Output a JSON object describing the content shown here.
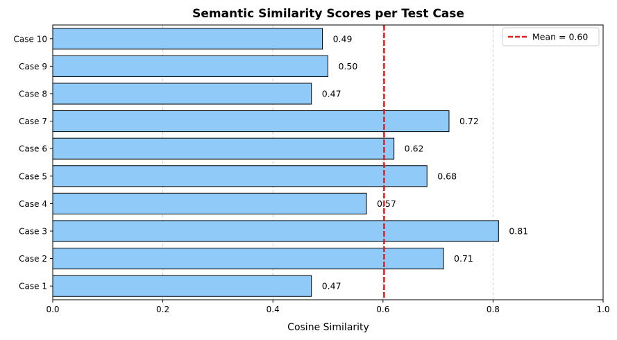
{
  "chart_data": {
    "type": "bar",
    "orientation": "horizontal",
    "title": "Semantic Similarity Scores per Test Case",
    "xlabel": "Cosine Similarity",
    "ylabel": "",
    "xlim": [
      0,
      1
    ],
    "xticks": [
      "0.0",
      "0.2",
      "0.4",
      "0.6",
      "0.8",
      "1.0"
    ],
    "categories": [
      "Case 1",
      "Case 2",
      "Case 3",
      "Case 4",
      "Case 5",
      "Case 6",
      "Case 7",
      "Case 8",
      "Case 9",
      "Case 10"
    ],
    "values": [
      0.47,
      0.71,
      0.81,
      0.57,
      0.68,
      0.62,
      0.72,
      0.47,
      0.5,
      0.49
    ],
    "value_labels": [
      "0.47",
      "0.71",
      "0.81",
      "0.57",
      "0.68",
      "0.62",
      "0.72",
      "0.47",
      "0.50",
      "0.49"
    ],
    "mean": 0.602,
    "legend": {
      "position": "top-right",
      "entries": [
        "Mean = 0.60"
      ]
    },
    "grid": "x-axis dashed",
    "colors": {
      "bar": "#90caf9",
      "bar_edge": "#000000",
      "mean_line": "#e31a1c",
      "grid": "#cccccc"
    }
  }
}
